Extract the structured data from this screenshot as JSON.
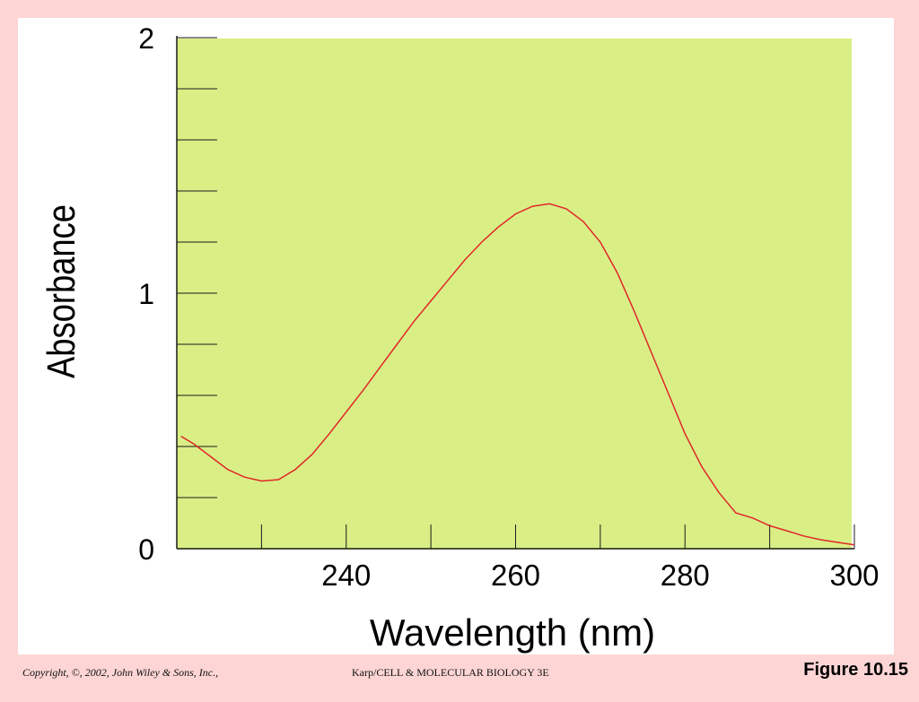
{
  "chart_data": {
    "type": "line",
    "xlabel": "Wavelength (nm)",
    "ylabel": "Absorbance",
    "xlim": [
      220,
      300
    ],
    "ylim": [
      0,
      2
    ],
    "x_tick_labels": [
      {
        "value": 240,
        "label": "240"
      },
      {
        "value": 260,
        "label": "260"
      },
      {
        "value": 280,
        "label": "280"
      },
      {
        "value": 300,
        "label": "300"
      }
    ],
    "y_tick_labels": [
      {
        "value": 0,
        "label": "0"
      },
      {
        "value": 1,
        "label": "1"
      },
      {
        "value": 2,
        "label": "2"
      }
    ],
    "x_minor_ticks": [
      230,
      240,
      250,
      260,
      270,
      280,
      290,
      300
    ],
    "y_minor_ticks": [
      0.2,
      0.4,
      0.6,
      0.8,
      1.0,
      1.2,
      1.4,
      1.6,
      1.8,
      2.0
    ],
    "grid": false,
    "colors": {
      "plot_background": "#d9ef85",
      "line": "#e0262a",
      "axis": "#1a1a1a"
    },
    "series": [
      {
        "x": [
          220.5,
          222,
          224,
          226,
          228,
          230,
          232,
          234,
          236,
          238,
          240,
          242,
          244,
          246,
          248,
          250,
          252,
          254,
          256,
          258,
          260,
          262,
          264,
          266,
          268,
          270,
          272,
          274,
          276,
          278,
          280,
          282,
          284,
          286,
          288,
          290,
          292,
          294,
          296,
          298,
          300
        ],
        "y": [
          0.44,
          0.41,
          0.36,
          0.31,
          0.28,
          0.265,
          0.27,
          0.31,
          0.37,
          0.45,
          0.535,
          0.62,
          0.71,
          0.8,
          0.89,
          0.97,
          1.05,
          1.13,
          1.2,
          1.26,
          1.31,
          1.34,
          1.35,
          1.33,
          1.28,
          1.2,
          1.08,
          0.93,
          0.77,
          0.61,
          0.45,
          0.32,
          0.22,
          0.14,
          0.12,
          0.09,
          0.07,
          0.05,
          0.035,
          0.025,
          0.015
        ]
      }
    ]
  },
  "footer": {
    "copyright": "Copyright, ©, 2002, John Wiley & Sons, Inc.,",
    "course": "Karp/CELL & MOLECULAR BIOLOGY 3E",
    "figure": "Figure 10.15"
  }
}
